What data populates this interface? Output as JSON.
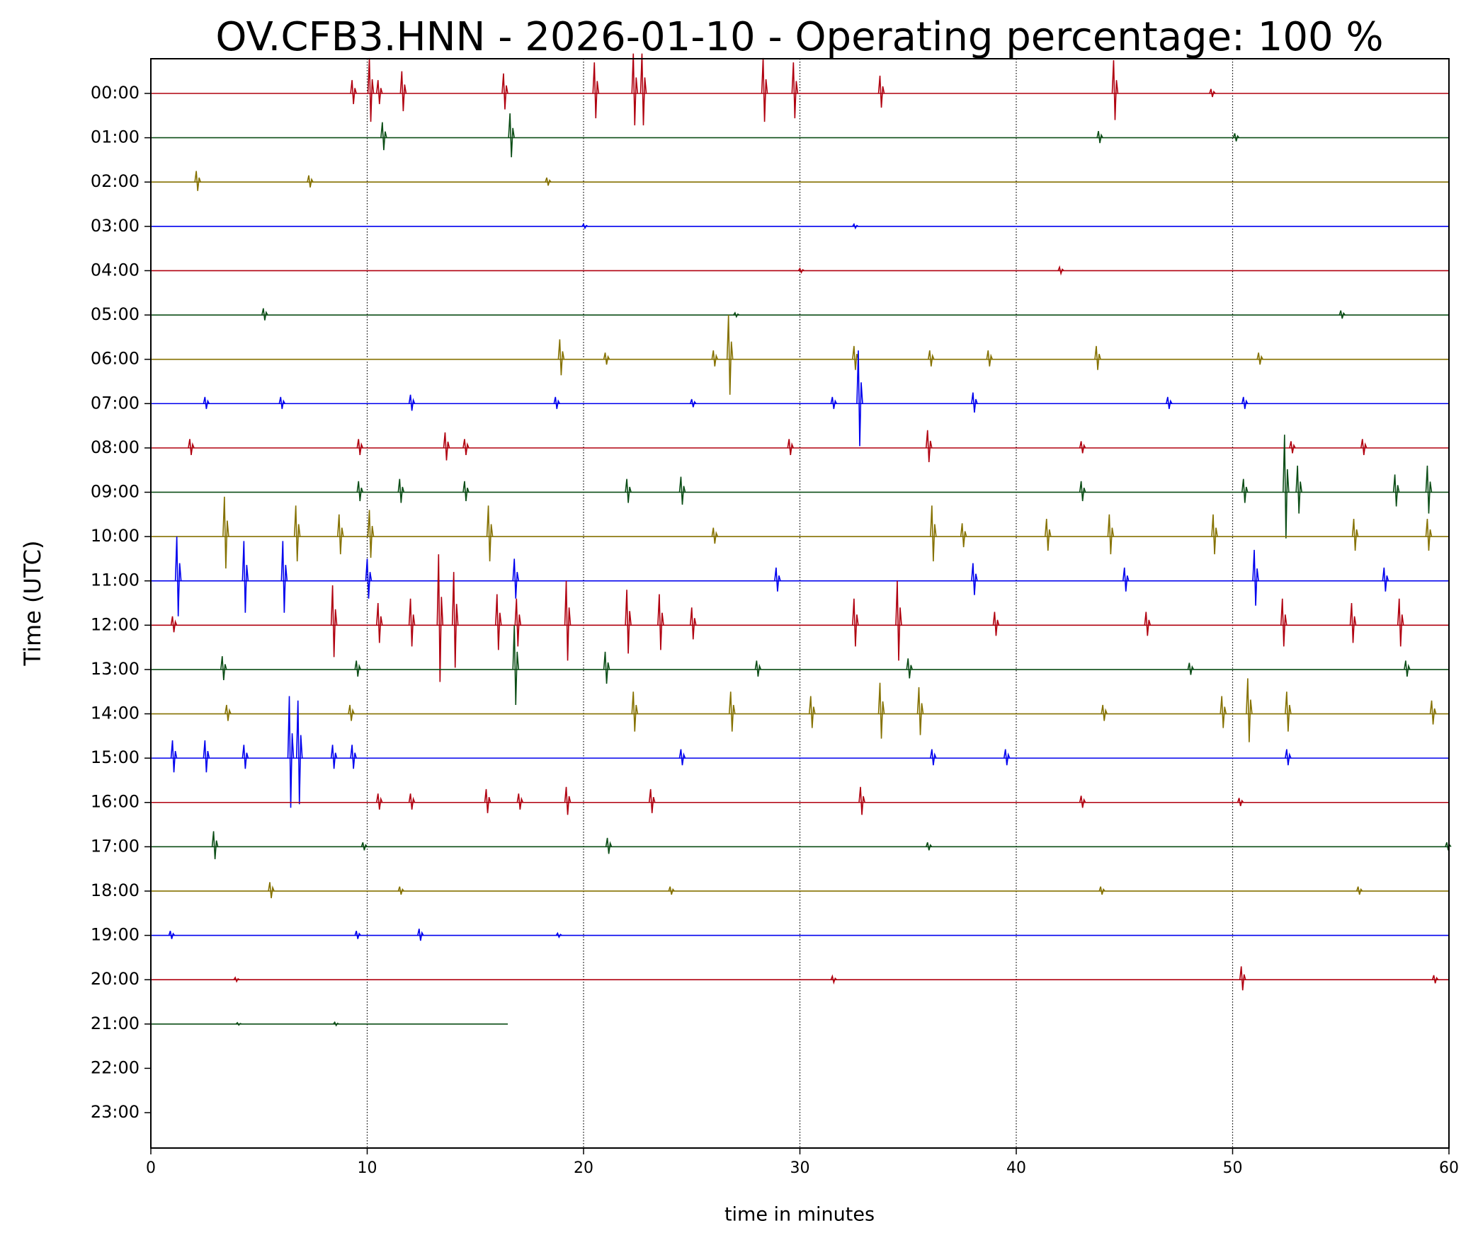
{
  "chart_data": {
    "type": "helicorder",
    "title": "OV.CFB3.HNN - 2026-01-10 - Operating percentage: 100 %",
    "x_label": "time in minutes",
    "y_label": "Time (UTC)",
    "xlim": [
      0,
      60
    ],
    "xticks": [
      0,
      10,
      20,
      30,
      40,
      50,
      60
    ],
    "grid": true,
    "categories": [
      "00:00",
      "01:00",
      "02:00",
      "03:00",
      "04:00",
      "05:00",
      "06:00",
      "07:00",
      "08:00",
      "09:00",
      "10:00",
      "11:00",
      "12:00",
      "13:00",
      "14:00",
      "15:00",
      "16:00",
      "17:00",
      "18:00",
      "19:00",
      "20:00",
      "21:00",
      "22:00",
      "23:00"
    ],
    "series": [
      {
        "color": "#b0000f",
        "end": 60,
        "x": [
          9.3,
          10.1,
          10.5,
          11.6,
          16.3,
          20.5,
          22.3,
          22.7,
          28.3,
          29.7,
          33.7,
          44.5,
          49
        ],
        "values": [
          0.3,
          0.8,
          0.3,
          0.5,
          0.45,
          0.7,
          0.9,
          0.9,
          0.8,
          0.7,
          0.4,
          0.75,
          0.1
        ]
      },
      {
        "color": "#0b4d16",
        "end": 60,
        "x": [
          10.7,
          16.6,
          43.8,
          50.1
        ],
        "values": [
          0.35,
          0.55,
          0.15,
          0.1
        ]
      },
      {
        "color": "#857100",
        "end": 60,
        "x": [
          2.1,
          7.3,
          18.3
        ],
        "values": [
          0.25,
          0.15,
          0.1
        ]
      },
      {
        "color": "#0000ee",
        "end": 60,
        "x": [
          20,
          32.5
        ],
        "values": [
          0.05,
          0.05
        ]
      },
      {
        "color": "#b0000f",
        "end": 60,
        "x": [
          30,
          42
        ],
        "values": [
          0.05,
          0.08
        ]
      },
      {
        "color": "#0b4d16",
        "end": 60,
        "x": [
          5.2,
          27,
          55
        ],
        "values": [
          0.15,
          0.05,
          0.1
        ]
      },
      {
        "color": "#857100",
        "end": 60,
        "x": [
          18.9,
          21,
          26,
          26.7,
          32.5,
          36,
          38.7,
          43.7,
          51.2
        ],
        "values": [
          0.45,
          0.15,
          0.2,
          1.0,
          0.3,
          0.2,
          0.2,
          0.3,
          0.15
        ]
      },
      {
        "color": "#0000ee",
        "end": 60,
        "x": [
          2.5,
          6,
          12,
          18.7,
          25,
          31.5,
          32.7,
          38,
          47,
          50.5
        ],
        "values": [
          0.15,
          0.15,
          0.2,
          0.15,
          0.1,
          0.15,
          1.2,
          0.25,
          0.15,
          0.15
        ]
      },
      {
        "color": "#b0000f",
        "end": 60,
        "x": [
          1.8,
          9.6,
          13.6,
          14.5,
          29.5,
          35.9,
          43,
          52.7,
          56
        ],
        "values": [
          0.2,
          0.2,
          0.35,
          0.2,
          0.2,
          0.4,
          0.15,
          0.15,
          0.2
        ]
      },
      {
        "color": "#0b4d16",
        "end": 60,
        "x": [
          9.6,
          11.5,
          14.5,
          22,
          24.5,
          43,
          50.5,
          52.4,
          53,
          57.5,
          59
        ],
        "values": [
          0.25,
          0.3,
          0.25,
          0.3,
          0.35,
          0.25,
          0.3,
          1.3,
          0.6,
          0.4,
          0.6
        ]
      },
      {
        "color": "#857100",
        "end": 60,
        "x": [
          3.4,
          6.7,
          8.7,
          10.1,
          15.6,
          26,
          36.1,
          37.5,
          41.4,
          44.3,
          49.1,
          55.6,
          59
        ],
        "values": [
          0.9,
          0.7,
          0.5,
          0.6,
          0.7,
          0.2,
          0.7,
          0.3,
          0.4,
          0.5,
          0.5,
          0.4,
          0.4
        ]
      },
      {
        "color": "#0000ee",
        "end": 60,
        "x": [
          1.2,
          4.3,
          6.1,
          10,
          16.8,
          28.9,
          38,
          45,
          51,
          57
        ],
        "values": [
          1.0,
          0.9,
          0.9,
          0.5,
          0.5,
          0.3,
          0.4,
          0.3,
          0.7,
          0.3
        ]
      },
      {
        "color": "#b0000f",
        "end": 60,
        "x": [
          1,
          8.4,
          10.5,
          12,
          13.3,
          14,
          16,
          16.9,
          19.2,
          22,
          23.5,
          25,
          32.5,
          34.5,
          39,
          46,
          52.3,
          55.5,
          57.7
        ],
        "values": [
          0.2,
          0.9,
          0.5,
          0.6,
          1.6,
          1.2,
          0.7,
          0.6,
          1.0,
          0.8,
          0.7,
          0.4,
          0.6,
          1.0,
          0.3,
          0.3,
          0.6,
          0.5,
          0.6
        ]
      },
      {
        "color": "#0b4d16",
        "end": 60,
        "x": [
          3.3,
          9.5,
          16.8,
          21,
          28,
          35,
          48,
          58
        ],
        "values": [
          0.3,
          0.2,
          1.0,
          0.4,
          0.2,
          0.25,
          0.15,
          0.2
        ]
      },
      {
        "color": "#857100",
        "end": 60,
        "x": [
          3.5,
          9.2,
          22.3,
          26.8,
          30.5,
          33.7,
          35.5,
          44,
          49.5,
          50.7,
          52.5,
          59.2
        ],
        "values": [
          0.2,
          0.2,
          0.5,
          0.5,
          0.4,
          0.7,
          0.6,
          0.2,
          0.4,
          0.8,
          0.5,
          0.3
        ]
      },
      {
        "color": "#0000ee",
        "end": 60,
        "x": [
          1,
          2.5,
          4.3,
          6.4,
          6.8,
          8.4,
          9.3,
          24.5,
          36.1,
          39.5,
          52.5
        ],
        "values": [
          0.4,
          0.4,
          0.3,
          1.4,
          1.3,
          0.3,
          0.3,
          0.2,
          0.2,
          0.2,
          0.2
        ]
      },
      {
        "color": "#b0000f",
        "end": 60,
        "x": [
          10.5,
          12,
          15.5,
          17,
          19.2,
          23.1,
          32.8,
          43,
          50.3
        ],
        "values": [
          0.2,
          0.2,
          0.3,
          0.2,
          0.35,
          0.3,
          0.35,
          0.15,
          0.1
        ]
      },
      {
        "color": "#0b4d16",
        "end": 60,
        "x": [
          2.9,
          9.8,
          21.1,
          35.9,
          59.9
        ],
        "values": [
          0.35,
          0.1,
          0.2,
          0.1,
          0.1
        ]
      },
      {
        "color": "#857100",
        "end": 60,
        "x": [
          5.5,
          11.5,
          24,
          43.9,
          55.8
        ],
        "values": [
          0.2,
          0.1,
          0.1,
          0.1,
          0.1
        ]
      },
      {
        "color": "#0000ee",
        "end": 60,
        "x": [
          0.9,
          9.5,
          12.4,
          18.8
        ],
        "values": [
          0.1,
          0.1,
          0.15,
          0.05
        ]
      },
      {
        "color": "#b0000f",
        "end": 60,
        "x": [
          3.9,
          31.5,
          50.4,
          59.3
        ],
        "values": [
          0.05,
          0.08,
          0.3,
          0.1
        ]
      },
      {
        "color": "#0b4d16",
        "end": 16.5,
        "x": [
          4,
          8.5
        ],
        "values": [
          0.03,
          0.04
        ]
      }
    ]
  }
}
